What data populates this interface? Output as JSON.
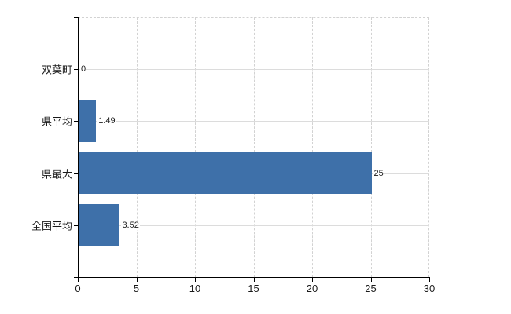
{
  "chart_data": {
    "type": "bar",
    "orientation": "horizontal",
    "title": "",
    "xlabel": "",
    "ylabel": "",
    "categories": [
      "双葉町",
      "県平均",
      "県最大",
      "全国平均"
    ],
    "values": [
      0,
      1.49,
      25,
      3.52
    ],
    "value_labels": [
      "0",
      "1.49",
      "25",
      "3.52"
    ],
    "xlim": [
      0,
      30
    ],
    "xticks": [
      0,
      5,
      10,
      15,
      20,
      25,
      30
    ],
    "grid": true,
    "legend": false,
    "colors": {
      "bar": "#3e70a9",
      "grid_dashed": "#d2d2d2",
      "grid_solid": "#dcdcdc",
      "axis": "#000000",
      "text": "#1a1a1a",
      "background": "#ffffff"
    }
  }
}
